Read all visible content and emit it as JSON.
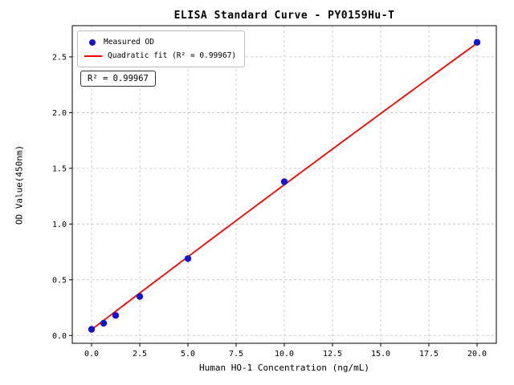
{
  "chart_data": {
    "type": "scatter",
    "title": "ELISA Standard Curve - PY0159Hu-T",
    "xlabel": "Human HO-1 Concentration (ng/mL)",
    "ylabel": "OD Value(450nm)",
    "xlim": [
      -1,
      21
    ],
    "ylim": [
      -0.07,
      2.78
    ],
    "x_ticks": [
      0.0,
      2.5,
      5.0,
      7.5,
      10.0,
      12.5,
      15.0,
      17.5,
      20.0
    ],
    "y_ticks": [
      0.0,
      0.5,
      1.0,
      1.5,
      2.0,
      2.5
    ],
    "grid": true,
    "legend_position": "upper left",
    "annotation": "R² = 0.99967",
    "series": [
      {
        "name": "Measured OD",
        "type": "scatter",
        "color": "#1515cd",
        "x": [
          0,
          0.625,
          1.25,
          2.5,
          5,
          10,
          20
        ],
        "y": [
          0.055,
          0.11,
          0.18,
          0.35,
          0.69,
          1.38,
          2.63
        ]
      },
      {
        "name": "Quadratic fit (R² = 0.99967)",
        "type": "line",
        "color": "#ff0000",
        "fit": {
          "a": -0.00015,
          "b": 0.1315,
          "c": 0.053
        },
        "x_range": [
          0,
          20
        ]
      }
    ]
  }
}
